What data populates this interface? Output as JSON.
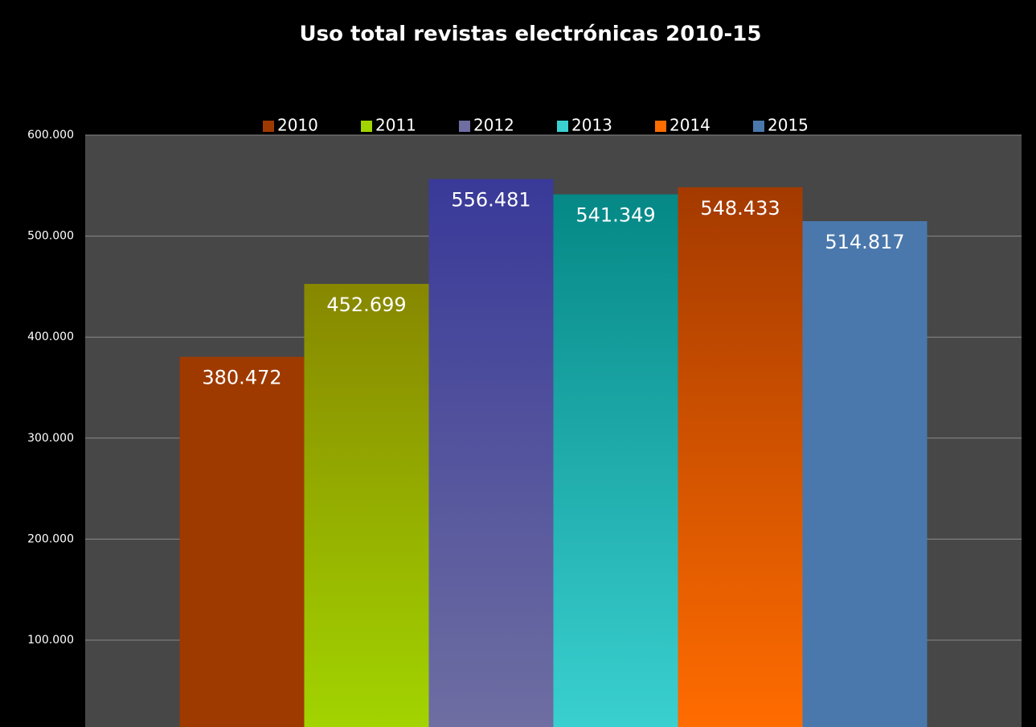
{
  "chart_data": {
    "type": "bar",
    "title": "Uso total revistas electrónicas 2010-15",
    "categories": [
      null
    ],
    "series": [
      {
        "name": "2010",
        "color": "#9e3a00",
        "color_end": "#9e3a00",
        "values": [
          380472
        ],
        "value_labels": [
          "380.472"
        ]
      },
      {
        "name": "2011",
        "color": "#878700",
        "color_end": "#a2d400",
        "values": [
          452699
        ],
        "value_labels": [
          "452.699"
        ]
      },
      {
        "name": "2012",
        "color": "#393999",
        "color_end": "#6e6ea2",
        "values": [
          556481
        ],
        "value_labels": [
          "556.481"
        ]
      },
      {
        "name": "2013",
        "color": "#058886",
        "color_end": "#3ad0d0",
        "values": [
          541349
        ],
        "value_labels": [
          "541.349"
        ]
      },
      {
        "name": "2014",
        "color": "#a43a00",
        "color_end": "#ff6c00",
        "values": [
          548433
        ],
        "value_labels": [
          "548.433"
        ]
      },
      {
        "name": "2015",
        "color": "#4a78ac",
        "color_end": "#4a78ac",
        "values": [
          514817
        ],
        "value_labels": [
          "514.817"
        ]
      }
    ],
    "ylim": [
      14000,
      600000
    ],
    "yticks": [
      {
        "value": 100000,
        "label": "100.000"
      },
      {
        "value": 200000,
        "label": "200.000"
      },
      {
        "value": 300000,
        "label": "300.000"
      },
      {
        "value": 400000,
        "label": "400.000"
      },
      {
        "value": 500000,
        "label": "500.000"
      },
      {
        "value": 600000,
        "label": "600.000"
      }
    ],
    "grid": true,
    "legend": "top"
  }
}
